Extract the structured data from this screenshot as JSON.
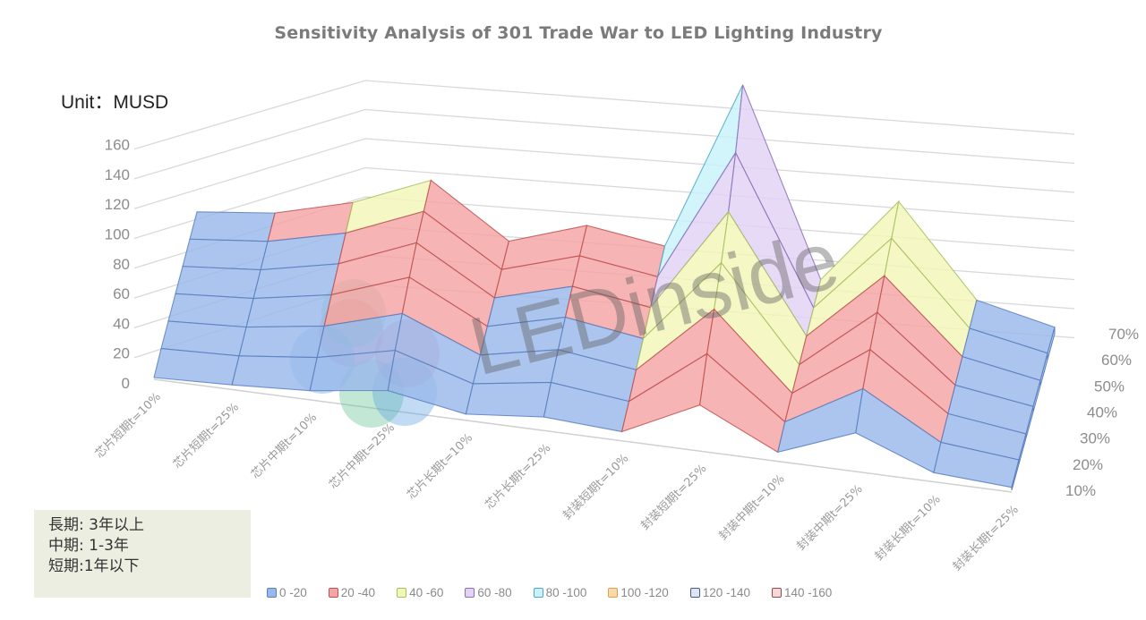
{
  "chart_data": {
    "type": "surface",
    "title": "Sensitivity Analysis of 301 Trade War to LED Lighting Industry",
    "unit_label": "Unit：MUSD",
    "ylabel": "MUSD",
    "ylim": [
      0,
      160
    ],
    "yticks": [
      "0",
      "20",
      "40",
      "60",
      "80",
      "100",
      "120",
      "140",
      "160"
    ],
    "grid": true,
    "categories": [
      "芯片短期t=10%",
      "芯片短期t=25%",
      "芯片中期t=10%",
      "芯片中期t=25%",
      "芯片长期t=10%",
      "芯片长期t=25%",
      "封装短期t=10%",
      "封装短期t=25%",
      "封装中期t=10%",
      "封装中期t=25%",
      "封装长期t=10%",
      "封装长期t=25%"
    ],
    "depth_series": [
      "10%",
      "20%",
      "30%",
      "40%",
      "50%",
      "60%",
      "70%"
    ],
    "series": [
      {
        "name": "10%",
        "values": [
          0,
          2,
          5,
          12,
          3,
          8,
          5,
          30,
          5,
          25,
          5,
          2
        ]
      },
      {
        "name": "20%",
        "values": [
          2,
          4,
          10,
          22,
          6,
          14,
          8,
          48,
          8,
          38,
          8,
          3
        ]
      },
      {
        "name": "30%",
        "values": [
          3,
          6,
          14,
          30,
          8,
          19,
          12,
          62,
          10,
          48,
          10,
          3
        ]
      },
      {
        "name": "40%",
        "values": [
          4,
          8,
          18,
          38,
          10,
          24,
          16,
          78,
          12,
          57,
          12,
          4
        ]
      },
      {
        "name": "50%",
        "values": [
          5,
          10,
          22,
          45,
          12,
          28,
          20,
          98,
          14,
          66,
          14,
          4
        ]
      },
      {
        "name": "60%",
        "values": [
          6,
          12,
          26,
          50,
          14,
          32,
          24,
          125,
          16,
          76,
          16,
          5
        ]
      },
      {
        "name": "70%",
        "values": [
          7,
          14,
          30,
          55,
          16,
          36,
          28,
          160,
          18,
          86,
          18,
          5
        ]
      }
    ],
    "legend": {
      "position": "bottom",
      "entries": [
        {
          "label": "0 -20",
          "color": "#9ab8ea",
          "border": "#5b7fc0"
        },
        {
          "label": "20 -40",
          "color": "#f4a4a4",
          "border": "#c05050"
        },
        {
          "label": "40 -60",
          "color": "#f3f6b8",
          "border": "#a8c060"
        },
        {
          "label": "60 -80",
          "color": "#e2d2f4",
          "border": "#8a70b8"
        },
        {
          "label": "80 -100",
          "color": "#c8f1fa",
          "border": "#50a8c8"
        },
        {
          "label": "100 -120",
          "color": "#fcd9a8",
          "border": "#e0a050"
        },
        {
          "label": "120 -140",
          "color": "#dde6f6",
          "border": "#4a5a80"
        },
        {
          "label": "140 -160",
          "color": "#f6d6d6",
          "border": "#8a5050"
        }
      ]
    },
    "watermark": "LEDinside"
  },
  "note_box": {
    "lines": [
      "長期: 3年以上",
      "中期: 1-3年",
      "短期:1年以下"
    ]
  }
}
